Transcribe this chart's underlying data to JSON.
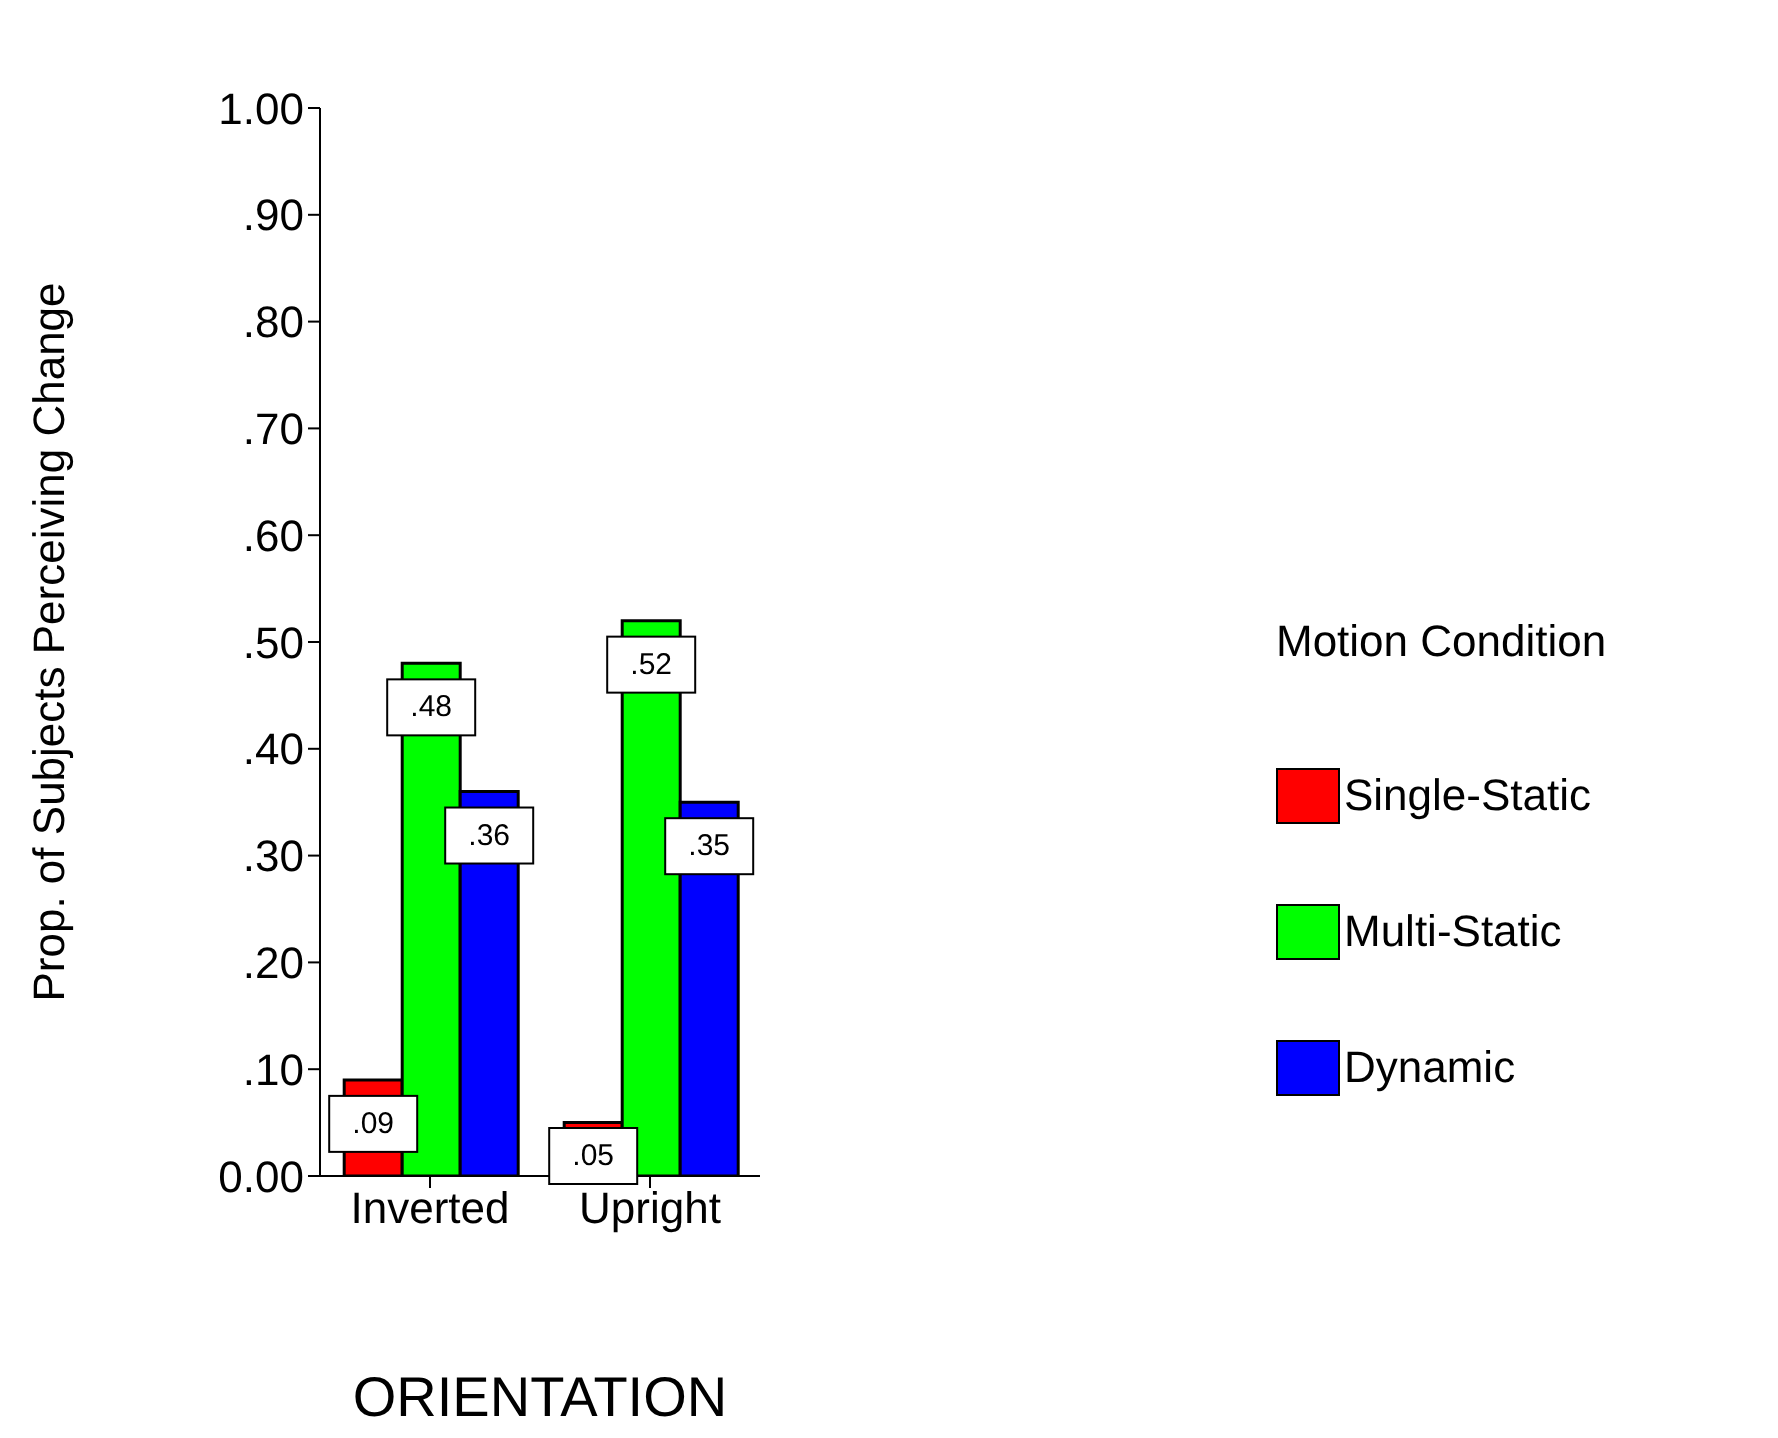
{
  "chart_data": {
    "type": "bar",
    "xlabel": "ORIENTATION",
    "ylabel": "Prop. of Subjects Perceiving Change",
    "legend_title": "Motion Condition",
    "categories": [
      "Inverted",
      "Upright"
    ],
    "series": [
      {
        "name": "Single-Static",
        "color": "#ff0000",
        "values": [
          0.09,
          0.05
        ],
        "value_labels": [
          ".09",
          ".05"
        ]
      },
      {
        "name": "Multi-Static",
        "color": "#00ff00",
        "values": [
          0.48,
          0.52
        ],
        "value_labels": [
          ".48",
          ".52"
        ]
      },
      {
        "name": "Dynamic",
        "color": "#0000ff",
        "values": [
          0.36,
          0.35
        ],
        "value_labels": [
          ".36",
          ".35"
        ]
      }
    ],
    "ylim": [
      0,
      1
    ],
    "yticks": [
      {
        "value": 0,
        "label": "0.00"
      },
      {
        "value": 0.1,
        "label": ".10"
      },
      {
        "value": 0.2,
        "label": ".20"
      },
      {
        "value": 0.3,
        "label": ".30"
      },
      {
        "value": 0.4,
        "label": ".40"
      },
      {
        "value": 0.5,
        "label": ".50"
      },
      {
        "value": 0.6,
        "label": ".60"
      },
      {
        "value": 0.7,
        "label": ".70"
      },
      {
        "value": 0.8,
        "label": ".80"
      },
      {
        "value": 0.9,
        "label": ".90"
      },
      {
        "value": 1,
        "label": "1.00"
      }
    ],
    "grid": false,
    "legend": "right"
  }
}
